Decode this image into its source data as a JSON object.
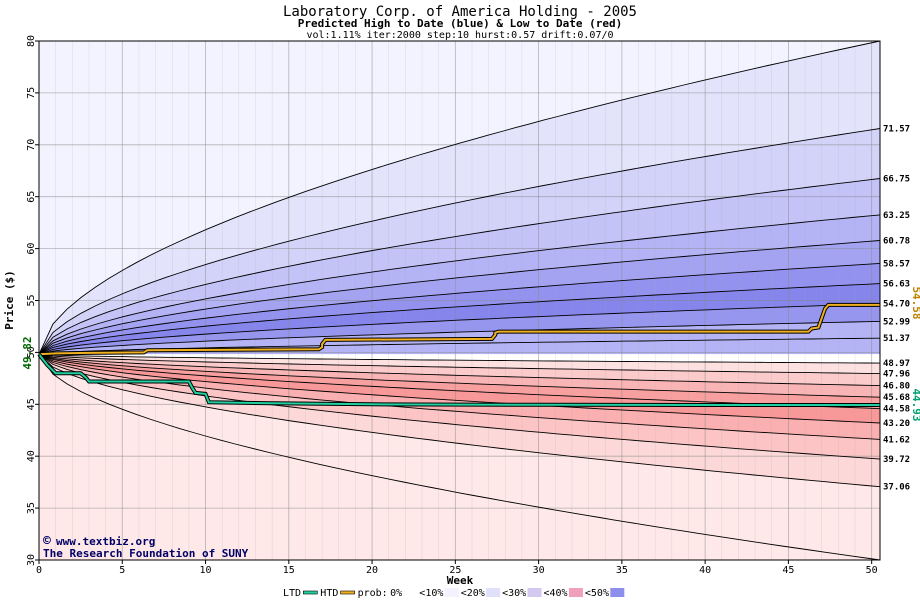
{
  "chart_data": {
    "type": "area",
    "title": "Laboratory Corp. of America Holding - 2005",
    "subtitle": "Predicted High to Date (blue) &  Low to Date (red)",
    "params": "vol:1.11% iter:2000 step:10 hurst:0.57 drift:0.07/0",
    "xlabel": "Week",
    "ylabel": "Price ($)",
    "xlim": [
      0,
      50.5
    ],
    "ylim": [
      30,
      80
    ],
    "x_ticks": [
      0,
      5,
      10,
      15,
      20,
      25,
      30,
      35,
      40,
      45,
      50
    ],
    "y_ticks": [
      30,
      35,
      40,
      45,
      50,
      55,
      60,
      65,
      70,
      75,
      80
    ],
    "start_price": 49.82,
    "start_label": "49.82",
    "high_bands": [
      {
        "end": 71.57,
        "label": "71.57"
      },
      {
        "end": 66.75,
        "label": "66.75"
      },
      {
        "end": 63.25,
        "label": "63.25"
      },
      {
        "end": 60.78,
        "label": "60.78"
      },
      {
        "end": 58.57,
        "label": "58.57"
      },
      {
        "end": 56.63,
        "label": "56.63"
      },
      {
        "end": 54.7,
        "label": "54.70"
      },
      {
        "end": 52.99,
        "label": "52.99"
      },
      {
        "end": 51.37,
        "label": "51.37"
      }
    ],
    "high_extreme_end": 80,
    "high_fill_colors": [
      "#f3f3ff",
      "#e3e3fc",
      "#d3d3fa",
      "#c3c3f8",
      "#b3b3f5",
      "#a3a3f2",
      "#9393ef",
      "#8585ec",
      "#9696ef",
      "#b3b3f5"
    ],
    "low_bands": [
      {
        "end": 48.97,
        "label": "48.97"
      },
      {
        "end": 47.96,
        "label": "47.96"
      },
      {
        "end": 46.8,
        "label": "46.80"
      },
      {
        "end": 45.68,
        "label": "45.68"
      },
      {
        "end": 44.58,
        "label": "44.58"
      },
      {
        "end": 43.2,
        "label": "43.20"
      },
      {
        "end": 41.62,
        "label": "41.62"
      },
      {
        "end": 39.72,
        "label": "39.72"
      },
      {
        "end": 37.06,
        "label": "37.06"
      }
    ],
    "low_extreme_end": 30,
    "low_fill_colors": [
      "#ffffff",
      "#fde0e0",
      "#fbcaca",
      "#f9b5b5",
      "#f8a0a0",
      "#f89898",
      "#fab0b0",
      "#fcc4c4",
      "#fdd8d8",
      "#fee8e8"
    ],
    "htd_series": {
      "name": "HTD",
      "color": "#f0b020",
      "end_label": "54.58",
      "x": [
        0,
        1,
        3,
        6.3,
        6.5,
        16.8,
        17,
        17,
        17.2,
        27.2,
        27.4,
        27.4,
        27.6,
        46.2,
        46.4,
        46.8,
        47.2,
        47.4,
        50.5
      ],
      "y": [
        49.82,
        49.9,
        49.95,
        50.0,
        50.2,
        50.3,
        50.5,
        50.8,
        51.2,
        51.3,
        51.7,
        51.9,
        52.0,
        52.0,
        52.3,
        52.4,
        54.2,
        54.58,
        54.58
      ]
    },
    "ltd_series": {
      "name": "LTD",
      "color": "#20d0a0",
      "end_label": "44.93",
      "x": [
        0,
        0.5,
        1,
        2.5,
        2.8,
        3,
        9,
        9.2,
        9.4,
        10,
        10.2,
        14,
        20,
        30,
        40,
        50.5
      ],
      "y": [
        49.82,
        48.8,
        48.0,
        48.0,
        47.6,
        47.2,
        47.2,
        46.6,
        46.1,
        46.0,
        45.2,
        45.1,
        45.0,
        44.95,
        44.93,
        44.93
      ]
    },
    "legend": {
      "ltd": "LTD",
      "htd": "HTD",
      "prob_prefix": "prob:",
      "items": [
        {
          "label": "0%",
          "color": "#ffffff"
        },
        {
          "label": "<10%",
          "color": "#f3f3ff"
        },
        {
          "label": "<20%",
          "color": "#e0e0fb"
        },
        {
          "label": "<30%",
          "color": "#d2c8f0"
        },
        {
          "label": "<40%",
          "color": "#f0a0b8"
        },
        {
          "label": "<50%",
          "color": "#8e8eec"
        }
      ]
    },
    "credits": [
      "www.textbiz.org",
      "The Research Foundation of SUNY"
    ],
    "copyright": "©"
  }
}
